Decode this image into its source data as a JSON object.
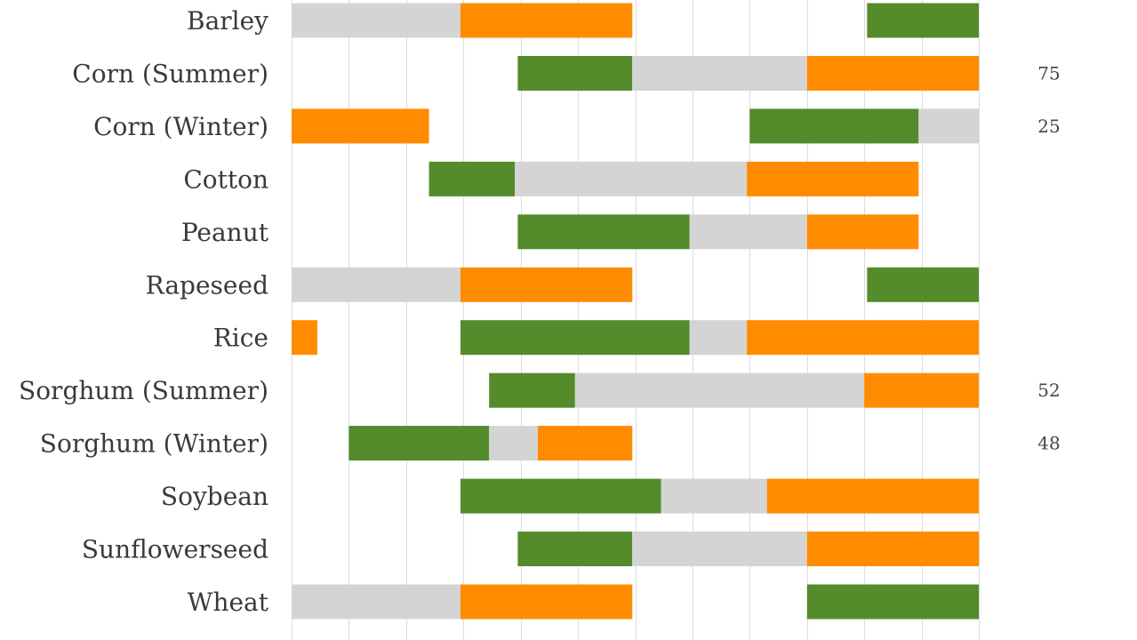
{
  "chart_data": {
    "type": "bar",
    "orientation": "horizontal-stacked-timeline",
    "xlim": [
      0,
      12
    ],
    "grid": true,
    "legend": "none",
    "colors": {
      "green": "#548b2b",
      "gray": "#d4d4d4",
      "orange": "#ff8c00"
    },
    "categories": [
      "Barley",
      "Corn (Summer)",
      "Corn (Winter)",
      "Cotton",
      "Peanut",
      "Rapeseed",
      "Rice",
      "Sorghum (Summer)",
      "Sorghum (Winter)",
      "Soybean",
      "Sunflowerseed",
      "Wheat"
    ],
    "rows": [
      {
        "label": "Barley",
        "side_value": "",
        "segments": [
          {
            "color": "gray",
            "start": 0,
            "end": 2.95
          },
          {
            "color": "orange",
            "start": 2.95,
            "end": 5.95
          },
          {
            "color": "green",
            "start": 10.05,
            "end": 12
          }
        ]
      },
      {
        "label": "Corn (Summer)",
        "side_value": "75",
        "segments": [
          {
            "color": "green",
            "start": 3.95,
            "end": 5.95
          },
          {
            "color": "gray",
            "start": 5.95,
            "end": 9.0
          },
          {
            "color": "orange",
            "start": 9.0,
            "end": 12
          }
        ]
      },
      {
        "label": "Corn (Winter)",
        "side_value": "25",
        "segments": [
          {
            "color": "orange",
            "start": 0,
            "end": 2.4
          },
          {
            "color": "green",
            "start": 8.0,
            "end": 10.95
          },
          {
            "color": "gray",
            "start": 10.95,
            "end": 12
          }
        ]
      },
      {
        "label": "Cotton",
        "side_value": "",
        "segments": [
          {
            "color": "green",
            "start": 2.4,
            "end": 3.9
          },
          {
            "color": "gray",
            "start": 3.9,
            "end": 7.95
          },
          {
            "color": "orange",
            "start": 7.95,
            "end": 10.95
          }
        ]
      },
      {
        "label": "Peanut",
        "side_value": "",
        "segments": [
          {
            "color": "green",
            "start": 3.95,
            "end": 6.95
          },
          {
            "color": "gray",
            "start": 6.95,
            "end": 9.0
          },
          {
            "color": "orange",
            "start": 9.0,
            "end": 10.95
          }
        ]
      },
      {
        "label": "Rapeseed",
        "side_value": "",
        "segments": [
          {
            "color": "gray",
            "start": 0,
            "end": 2.95
          },
          {
            "color": "orange",
            "start": 2.95,
            "end": 5.95
          },
          {
            "color": "green",
            "start": 10.05,
            "end": 12
          }
        ]
      },
      {
        "label": "Rice",
        "side_value": "",
        "segments": [
          {
            "color": "orange",
            "start": 0,
            "end": 0.45
          },
          {
            "color": "green",
            "start": 2.95,
            "end": 6.95
          },
          {
            "color": "gray",
            "start": 6.95,
            "end": 7.95
          },
          {
            "color": "orange",
            "start": 7.95,
            "end": 12
          }
        ]
      },
      {
        "label": "Sorghum (Summer)",
        "side_value": "52",
        "segments": [
          {
            "color": "green",
            "start": 3.45,
            "end": 4.95
          },
          {
            "color": "gray",
            "start": 4.95,
            "end": 10.0
          },
          {
            "color": "orange",
            "start": 10.0,
            "end": 12
          }
        ]
      },
      {
        "label": "Sorghum (Winter)",
        "side_value": "48",
        "segments": [
          {
            "color": "green",
            "start": 1.0,
            "end": 3.45
          },
          {
            "color": "gray",
            "start": 3.45,
            "end": 4.3
          },
          {
            "color": "orange",
            "start": 4.3,
            "end": 5.95
          }
        ]
      },
      {
        "label": "Soybean",
        "side_value": "",
        "segments": [
          {
            "color": "green",
            "start": 2.95,
            "end": 6.45
          },
          {
            "color": "gray",
            "start": 6.45,
            "end": 8.3
          },
          {
            "color": "orange",
            "start": 8.3,
            "end": 12
          }
        ]
      },
      {
        "label": "Sunflowerseed",
        "side_value": "",
        "segments": [
          {
            "color": "green",
            "start": 3.95,
            "end": 5.95
          },
          {
            "color": "gray",
            "start": 5.95,
            "end": 9.0
          },
          {
            "color": "orange",
            "start": 9.0,
            "end": 12
          }
        ]
      },
      {
        "label": "Wheat",
        "side_value": "",
        "segments": [
          {
            "color": "gray",
            "start": 0,
            "end": 2.95
          },
          {
            "color": "orange",
            "start": 2.95,
            "end": 5.95
          },
          {
            "color": "green",
            "start": 9.0,
            "end": 12
          }
        ]
      }
    ]
  }
}
